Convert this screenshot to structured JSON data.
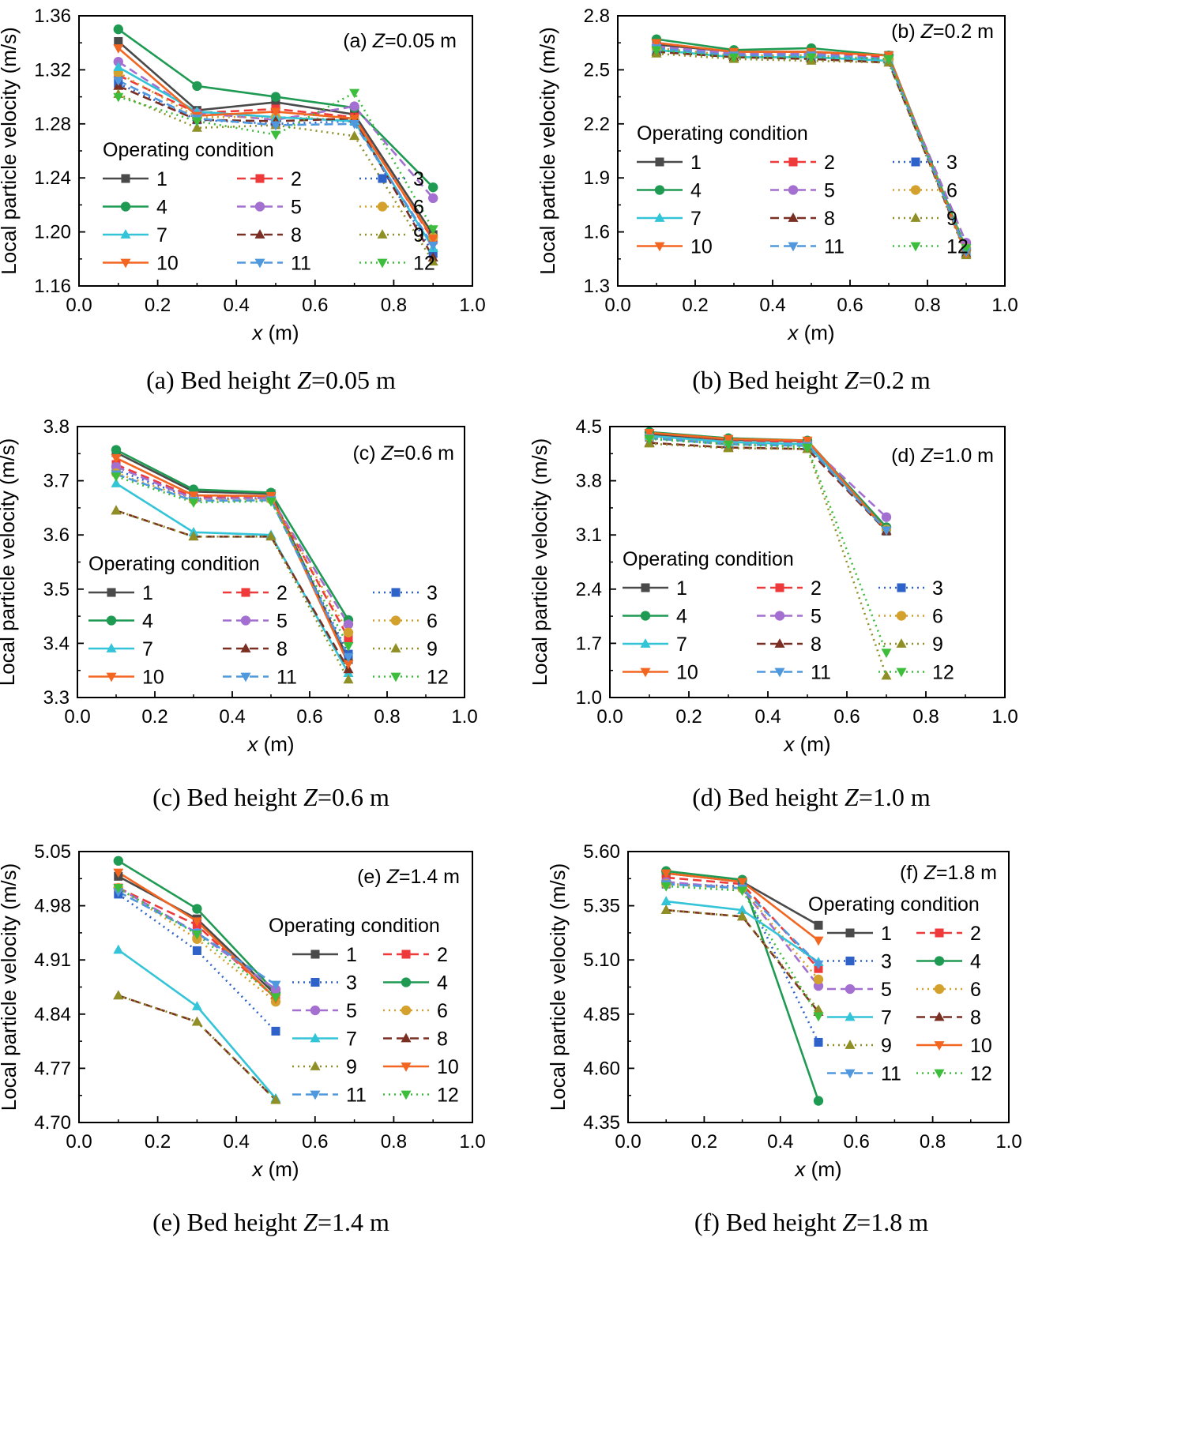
{
  "style": {
    "series_colors": [
      "#4a4a4a",
      "#ee3a3a",
      "#2f62c9",
      "#1e9a52",
      "#a36fd0",
      "#d4a12c",
      "#33c4d8",
      "#7a2f22",
      "#8f8f26",
      "#f26622",
      "#4f98dd",
      "#3cbd3c"
    ],
    "series_dash": [
      "solid",
      "dash",
      "dot",
      "solid",
      "dash",
      "dot",
      "solid",
      "dash",
      "dot",
      "solid",
      "dash",
      "dot"
    ],
    "series_markers": [
      "square",
      "square",
      "square",
      "circle",
      "circle",
      "circle",
      "triangle-up",
      "triangle-up",
      "triangle-up",
      "triangle-down",
      "triangle-down",
      "triangle-down"
    ]
  },
  "chart_data": [
    {
      "type": "line",
      "panel_label": "(a)",
      "annotation": "(a) Z=0.05 m",
      "caption": "(a) Bed height Z=0.05 m",
      "xlabel": "x (m)",
      "ylabel": "Local particle velocity (m/s)",
      "xlim": [
        0.0,
        1.0
      ],
      "ylim": [
        1.16,
        1.36
      ],
      "xticks": [
        "0.0",
        "0.2",
        "0.4",
        "0.6",
        "0.8",
        "1.0"
      ],
      "yticks": [
        "1.16",
        "1.20",
        "1.24",
        "1.28",
        "1.32",
        "1.36"
      ],
      "legend_title": "Operating condition",
      "legend_ncol": 3,
      "x": [
        0.1,
        0.3,
        0.5,
        0.7,
        0.9
      ],
      "series": [
        {
          "name": "1",
          "values": [
            1.341,
            1.29,
            1.296,
            1.287,
            1.198
          ]
        },
        {
          "name": "2",
          "values": [
            1.316,
            1.288,
            1.291,
            1.285,
            1.194
          ]
        },
        {
          "name": "3",
          "values": [
            1.31,
            1.283,
            1.28,
            1.282,
            1.184
          ]
        },
        {
          "name": "4",
          "values": [
            1.35,
            1.308,
            1.3,
            1.292,
            1.233
          ]
        },
        {
          "name": "5",
          "values": [
            1.326,
            1.288,
            1.283,
            1.293,
            1.225
          ]
        },
        {
          "name": "6",
          "values": [
            1.318,
            1.285,
            1.285,
            1.283,
            1.196
          ]
        },
        {
          "name": "7",
          "values": [
            1.322,
            1.289,
            1.285,
            1.282,
            1.188
          ]
        },
        {
          "name": "8",
          "values": [
            1.308,
            1.283,
            1.282,
            1.284,
            1.181
          ]
        },
        {
          "name": "9",
          "values": [
            1.302,
            1.277,
            1.279,
            1.271,
            1.178
          ]
        },
        {
          "name": "10",
          "values": [
            1.336,
            1.286,
            1.289,
            1.284,
            1.195
          ]
        },
        {
          "name": "11",
          "values": [
            1.312,
            1.284,
            1.279,
            1.28,
            1.19
          ]
        },
        {
          "name": "12",
          "values": [
            1.3,
            1.282,
            1.272,
            1.303,
            1.202
          ]
        }
      ]
    },
    {
      "type": "line",
      "panel_label": "(b)",
      "annotation": "(b) Z=0.2 m",
      "caption": "(b) Bed height Z=0.2 m",
      "xlabel": "x (m)",
      "ylabel": "Local particle velocity (m/s)",
      "xlim": [
        0.0,
        1.0
      ],
      "ylim": [
        1.3,
        2.8
      ],
      "xticks": [
        "0.0",
        "0.2",
        "0.4",
        "0.6",
        "0.8",
        "1.0"
      ],
      "yticks": [
        "1.3",
        "1.6",
        "1.9",
        "2.2",
        "2.5",
        "2.8"
      ],
      "legend_title": "Operating condition",
      "legend_ncol": 3,
      "x": [
        0.1,
        0.3,
        0.5,
        0.7,
        0.9
      ],
      "series": [
        {
          "name": "1",
          "values": [
            2.64,
            2.6,
            2.6,
            2.58,
            1.49
          ]
        },
        {
          "name": "2",
          "values": [
            2.63,
            2.59,
            2.59,
            2.57,
            1.5
          ]
        },
        {
          "name": "3",
          "values": [
            2.62,
            2.58,
            2.58,
            2.56,
            1.49
          ]
        },
        {
          "name": "4",
          "values": [
            2.67,
            2.61,
            2.62,
            2.58,
            1.5
          ]
        },
        {
          "name": "5",
          "values": [
            2.63,
            2.59,
            2.59,
            2.56,
            1.54
          ]
        },
        {
          "name": "6",
          "values": [
            2.62,
            2.58,
            2.58,
            2.56,
            1.51
          ]
        },
        {
          "name": "7",
          "values": [
            2.61,
            2.57,
            2.57,
            2.55,
            1.49
          ]
        },
        {
          "name": "8",
          "values": [
            2.6,
            2.57,
            2.56,
            2.54,
            1.48
          ]
        },
        {
          "name": "9",
          "values": [
            2.59,
            2.56,
            2.55,
            2.54,
            1.47
          ]
        },
        {
          "name": "10",
          "values": [
            2.65,
            2.6,
            2.6,
            2.58,
            1.48
          ]
        },
        {
          "name": "11",
          "values": [
            2.62,
            2.58,
            2.58,
            2.56,
            1.49
          ]
        },
        {
          "name": "12",
          "values": [
            2.61,
            2.57,
            2.57,
            2.56,
            1.51
          ]
        }
      ]
    },
    {
      "type": "line",
      "panel_label": "(c)",
      "annotation": "(c) Z=0.6 m",
      "caption": "(c) Bed height Z=0.6 m",
      "xlabel": "x (m)",
      "ylabel": "Local particle velocity (m/s)",
      "xlim": [
        0.0,
        1.0
      ],
      "ylim": [
        3.3,
        3.8
      ],
      "xticks": [
        "0.0",
        "0.2",
        "0.4",
        "0.6",
        "0.8",
        "1.0"
      ],
      "yticks": [
        "3.3",
        "3.4",
        "3.5",
        "3.6",
        "3.7",
        "3.8"
      ],
      "legend_title": "Operating condition",
      "legend_ncol": 3,
      "x": [
        0.1,
        0.3,
        0.5,
        0.7
      ],
      "series": [
        {
          "name": "1",
          "values": [
            3.752,
            3.68,
            3.676,
            3.37
          ]
        },
        {
          "name": "2",
          "values": [
            3.73,
            3.67,
            3.67,
            3.41
          ]
        },
        {
          "name": "3",
          "values": [
            3.72,
            3.667,
            3.668,
            3.38
          ]
        },
        {
          "name": "4",
          "values": [
            3.757,
            3.684,
            3.678,
            3.443
          ]
        },
        {
          "name": "5",
          "values": [
            3.726,
            3.667,
            3.668,
            3.435
          ]
        },
        {
          "name": "6",
          "values": [
            3.714,
            3.665,
            3.666,
            3.42
          ]
        },
        {
          "name": "7",
          "values": [
            3.695,
            3.605,
            3.6,
            3.345
          ]
        },
        {
          "name": "8",
          "values": [
            3.645,
            3.597,
            3.597,
            3.352
          ]
        },
        {
          "name": "9",
          "values": [
            3.645,
            3.597,
            3.597,
            3.333
          ]
        },
        {
          "name": "10",
          "values": [
            3.742,
            3.673,
            3.672,
            3.362
          ]
        },
        {
          "name": "11",
          "values": [
            3.712,
            3.663,
            3.664,
            3.375
          ]
        },
        {
          "name": "12",
          "values": [
            3.708,
            3.66,
            3.662,
            3.395
          ]
        }
      ]
    },
    {
      "type": "line",
      "panel_label": "(d)",
      "annotation": "(d) Z=1.0 m",
      "caption": "(d) Bed height Z=1.0 m",
      "xlabel": "x (m)",
      "ylabel": "Local particle velocity (m/s)",
      "xlim": [
        0.0,
        1.0
      ],
      "ylim": [
        1.0,
        4.5
      ],
      "xticks": [
        "0.0",
        "0.2",
        "0.4",
        "0.6",
        "0.8",
        "1.0"
      ],
      "yticks": [
        "1.0",
        "1.7",
        "2.4",
        "3.1",
        "3.8",
        "4.5"
      ],
      "legend_title": "Operating condition",
      "legend_ncol": 3,
      "x": [
        0.1,
        0.3,
        0.5,
        0.7
      ],
      "series": [
        {
          "name": "1",
          "values": [
            4.4,
            4.33,
            4.31,
            3.15
          ]
        },
        {
          "name": "2",
          "values": [
            4.38,
            4.31,
            4.3,
            3.18
          ]
        },
        {
          "name": "3",
          "values": [
            4.36,
            4.28,
            4.25,
            3.16
          ]
        },
        {
          "name": "4",
          "values": [
            4.43,
            4.35,
            4.32,
            3.2
          ]
        },
        {
          "name": "5",
          "values": [
            4.37,
            4.29,
            4.28,
            3.33
          ]
        },
        {
          "name": "6",
          "values": [
            4.36,
            4.28,
            4.26,
            3.17
          ]
        },
        {
          "name": "7",
          "values": [
            4.38,
            4.3,
            4.27,
            3.16
          ]
        },
        {
          "name": "8",
          "values": [
            4.29,
            4.23,
            4.21,
            3.15
          ]
        },
        {
          "name": "9",
          "values": [
            4.28,
            4.22,
            4.21,
            1.28
          ]
        },
        {
          "name": "10",
          "values": [
            4.42,
            4.34,
            4.32,
            3.16
          ]
        },
        {
          "name": "11",
          "values": [
            4.35,
            4.27,
            4.25,
            3.16
          ]
        },
        {
          "name": "12",
          "values": [
            4.34,
            4.27,
            4.23,
            1.58
          ]
        }
      ]
    },
    {
      "type": "line",
      "panel_label": "(e)",
      "annotation": "(e) Z=1.4 m",
      "caption": "(e) Bed height Z=1.4 m",
      "xlabel": "x (m)",
      "ylabel": "Local particle velocity (m/s)",
      "xlim": [
        0.0,
        1.0
      ],
      "ylim": [
        4.7,
        5.05
      ],
      "xticks": [
        "0.0",
        "0.2",
        "0.4",
        "0.6",
        "0.8",
        "1.0"
      ],
      "yticks": [
        "4.70",
        "4.77",
        "4.84",
        "4.91",
        "4.98",
        "5.05"
      ],
      "legend_title": "Operating condition",
      "legend_ncol": 2,
      "x": [
        0.1,
        0.3,
        0.5
      ],
      "series": [
        {
          "name": "1",
          "values": [
            5.018,
            4.963,
            4.865
          ]
        },
        {
          "name": "2",
          "values": [
            5.003,
            4.955,
            4.86
          ]
        },
        {
          "name": "3",
          "values": [
            4.995,
            4.922,
            4.818
          ]
        },
        {
          "name": "4",
          "values": [
            5.038,
            4.976,
            4.868
          ]
        },
        {
          "name": "5",
          "values": [
            5.003,
            4.945,
            4.872
          ]
        },
        {
          "name": "6",
          "values": [
            5.003,
            4.937,
            4.856
          ]
        },
        {
          "name": "7",
          "values": [
            4.923,
            4.85,
            4.731
          ]
        },
        {
          "name": "8",
          "values": [
            4.864,
            4.83,
            4.729
          ]
        },
        {
          "name": "9",
          "values": [
            4.864,
            4.83,
            4.729
          ]
        },
        {
          "name": "10",
          "values": [
            5.023,
            4.96,
            4.86
          ]
        },
        {
          "name": "11",
          "values": [
            4.998,
            4.945,
            4.878
          ]
        },
        {
          "name": "12",
          "values": [
            5.003,
            4.943,
            4.862
          ]
        }
      ]
    },
    {
      "type": "line",
      "panel_label": "(f)",
      "annotation": "(f) Z=1.8 m",
      "caption": "(f) Bed height Z=1.8 m",
      "xlabel": "x (m)",
      "ylabel": "Local particle velocity (m/s)",
      "xlim": [
        0.0,
        1.0
      ],
      "ylim": [
        4.35,
        5.6
      ],
      "xticks": [
        "0.0",
        "0.2",
        "0.4",
        "0.6",
        "0.8",
        "1.0"
      ],
      "yticks": [
        "4.35",
        "4.60",
        "4.85",
        "5.10",
        "5.35",
        "5.60"
      ],
      "legend_title": "Operating condition",
      "legend_ncol": 2,
      "x": [
        0.1,
        0.3,
        0.5
      ],
      "series": [
        {
          "name": "1",
          "values": [
            5.5,
            5.46,
            5.26
          ]
        },
        {
          "name": "2",
          "values": [
            5.48,
            5.45,
            5.06
          ]
        },
        {
          "name": "3",
          "values": [
            5.45,
            5.44,
            4.72
          ]
        },
        {
          "name": "4",
          "values": [
            5.51,
            5.47,
            4.45
          ]
        },
        {
          "name": "5",
          "values": [
            5.46,
            5.43,
            4.98
          ]
        },
        {
          "name": "6",
          "values": [
            5.45,
            5.43,
            5.01
          ]
        },
        {
          "name": "7",
          "values": [
            5.37,
            5.33,
            5.09
          ]
        },
        {
          "name": "8",
          "values": [
            5.33,
            5.3,
            4.86
          ]
        },
        {
          "name": "9",
          "values": [
            5.33,
            5.3,
            4.87
          ]
        },
        {
          "name": "10",
          "values": [
            5.5,
            5.46,
            5.19
          ]
        },
        {
          "name": "11",
          "values": [
            5.45,
            5.43,
            5.08
          ]
        },
        {
          "name": "12",
          "values": [
            5.44,
            5.42,
            4.84
          ]
        }
      ]
    }
  ]
}
